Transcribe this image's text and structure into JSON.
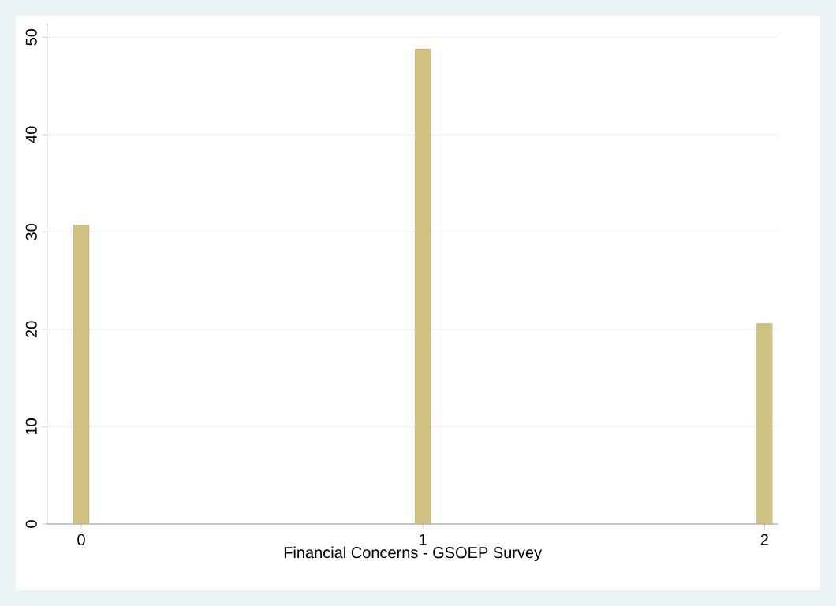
{
  "chart_data": {
    "type": "bar",
    "xlabel": "Financial Concerns - GSOEP Survey",
    "x": [
      0,
      1,
      2
    ],
    "values": [
      30.7,
      48.8,
      20.6
    ],
    "color": "#cfc283",
    "xlim": [
      -0.1,
      2.04
    ],
    "xticks": [
      0,
      1,
      2
    ],
    "ylim": [
      0,
      51.4
    ],
    "yticks": [
      0,
      10,
      20,
      30,
      40,
      50
    ],
    "grid": "y"
  }
}
